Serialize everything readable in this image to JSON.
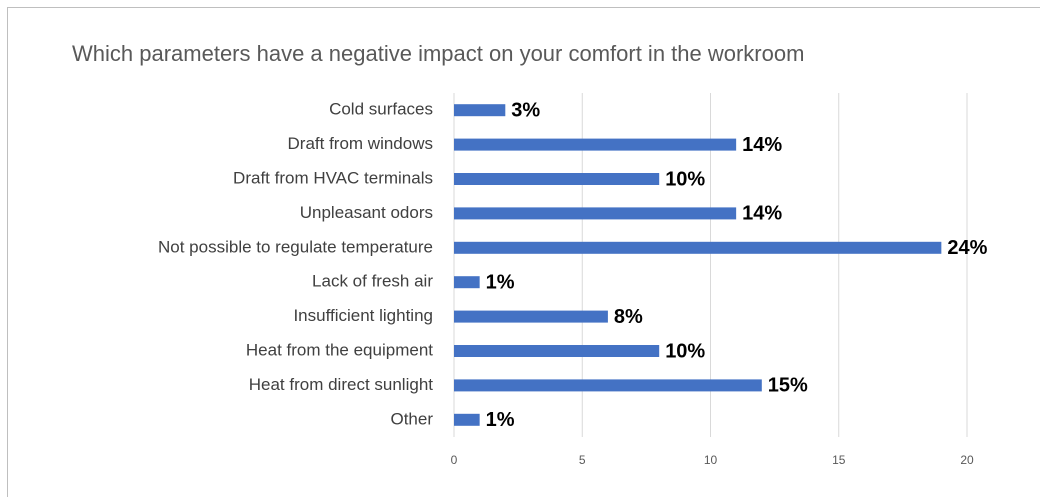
{
  "chart_data": {
    "type": "barh",
    "title": "Which parameters have a negative impact on your comfort in the workroom",
    "categories": [
      "Cold surfaces",
      "Draft from windows",
      "Draft from HVAC terminals",
      "Unpleasant odors",
      "Not possible to regulate temperature",
      "Lack of fresh air",
      "Insufficient lighting",
      "Heat from the equipment",
      "Heat from direct sunlight",
      "Other"
    ],
    "values": [
      2,
      11,
      8,
      11,
      19,
      1,
      6,
      8,
      12,
      1
    ],
    "value_labels": [
      "3%",
      "14%",
      "10%",
      "14%",
      "24%",
      "1%",
      "8%",
      "10%",
      "15%",
      "1%"
    ],
    "color": "#4472c4",
    "xlim": [
      0,
      20
    ],
    "xticks": [
      0,
      5,
      10,
      15,
      20
    ],
    "grid": true
  }
}
